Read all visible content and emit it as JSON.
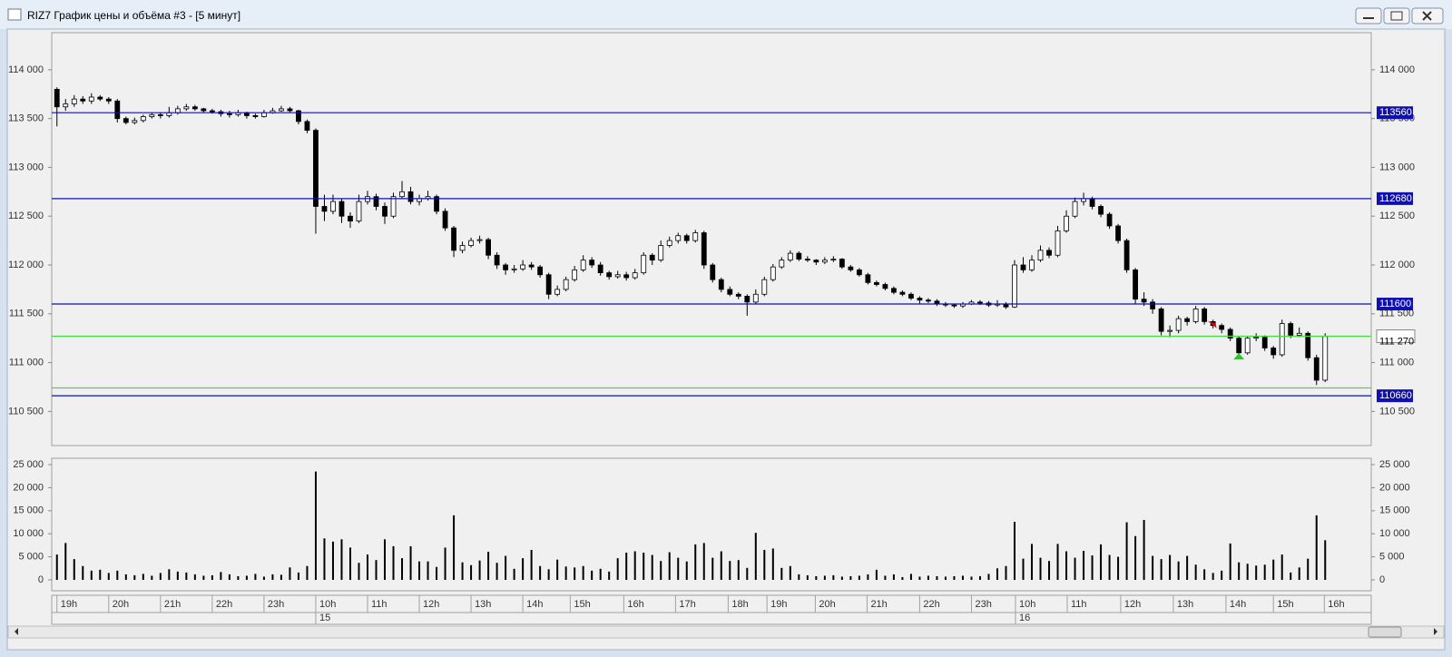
{
  "window": {
    "title": "RIZ7 График цены и объёма #3 - [5 минут]"
  },
  "chart_data": {
    "type": "candlestick",
    "ylim": [
      110150,
      114380
    ],
    "yticks": [
      {
        "value": 110500,
        "label": "110 500"
      },
      {
        "value": 111000,
        "label": "111 000"
      },
      {
        "value": 111500,
        "label": "111 500"
      },
      {
        "value": 112000,
        "label": "112 000"
      },
      {
        "value": 112500,
        "label": "112 500"
      },
      {
        "value": 113000,
        "label": "113 000"
      },
      {
        "value": 113500,
        "label": "113 500"
      },
      {
        "value": 114000,
        "label": "114 000"
      }
    ],
    "volume_ylim": [
      -2360,
      26380
    ],
    "volume_yticks": [
      0,
      {
        "value": 5000,
        "label": "5 000"
      },
      {
        "value": 10000,
        "label": "10 000"
      },
      {
        "value": 15000,
        "label": "15 000"
      },
      {
        "value": 20000,
        "label": "20 000"
      },
      {
        "value": 25000,
        "label": "25 000"
      }
    ],
    "xlim": [
      0,
      148
    ],
    "xticks": [
      {
        "value": 0.5,
        "label": "19h"
      },
      {
        "value": 6.5,
        "label": "20h"
      },
      {
        "value": 12.5,
        "label": "21h"
      },
      {
        "value": 18.5,
        "label": "22h"
      },
      {
        "value": 24.5,
        "label": "23h"
      },
      {
        "value": 30.5,
        "label": "10h"
      },
      {
        "value": 36.5,
        "label": "11h"
      },
      {
        "value": 42.5,
        "label": "12h"
      },
      {
        "value": 48.5,
        "label": "13h"
      },
      {
        "value": 54.5,
        "label": "14h"
      },
      {
        "value": 60,
        "label": "15h"
      },
      {
        "value": 66.2,
        "label": "16h"
      },
      {
        "value": 72.2,
        "label": "17h"
      },
      {
        "value": 78.3,
        "label": "18h"
      },
      {
        "value": 82.8,
        "label": "19h"
      },
      {
        "value": 88.4,
        "label": "20h"
      },
      {
        "value": 94.4,
        "label": "21h"
      },
      {
        "value": 100.5,
        "label": "22h"
      },
      {
        "value": 106.5,
        "label": "23h"
      },
      {
        "value": 111.6,
        "label": "10h"
      },
      {
        "value": 117.6,
        "label": "11h"
      },
      {
        "value": 123.8,
        "label": "12h"
      },
      {
        "value": 129.9,
        "label": "13h"
      },
      {
        "value": 136,
        "label": "14h"
      },
      {
        "value": 141.5,
        "label": "15h"
      },
      {
        "value": 147.4,
        "label": "16h"
      }
    ],
    "date_ticks": [
      {
        "value": 30.5,
        "label": "15"
      },
      {
        "value": 111.6,
        "label": "16"
      }
    ],
    "candles": [
      [
        113800,
        113820,
        113420,
        113620
      ],
      [
        113620,
        113700,
        113580,
        113650
      ],
      [
        113650,
        113740,
        113620,
        113700
      ],
      [
        113700,
        113730,
        113650,
        113680
      ],
      [
        113680,
        113760,
        113650,
        113720
      ],
      [
        113720,
        113740,
        113680,
        113700
      ],
      [
        113700,
        113720,
        113650,
        113680
      ],
      [
        113680,
        113700,
        113460,
        113500
      ],
      [
        113500,
        113520,
        113440,
        113460
      ],
      [
        113460,
        113510,
        113440,
        113480
      ],
      [
        113480,
        113540,
        113460,
        113520
      ],
      [
        113520,
        113560,
        113500,
        113540
      ],
      [
        113540,
        113560,
        113500,
        113530
      ],
      [
        113530,
        113620,
        113510,
        113560
      ],
      [
        113560,
        113630,
        113540,
        113600
      ],
      [
        113600,
        113650,
        113580,
        113620
      ],
      [
        113620,
        113640,
        113580,
        113600
      ],
      [
        113600,
        113610,
        113560,
        113580
      ],
      [
        113580,
        113600,
        113550,
        113570
      ],
      [
        113570,
        113590,
        113520,
        113550
      ],
      [
        113550,
        113580,
        113510,
        113540
      ],
      [
        113540,
        113590,
        113520,
        113560
      ],
      [
        113560,
        113570,
        113500,
        113530
      ],
      [
        113530,
        113550,
        113500,
        113520
      ],
      [
        113520,
        113590,
        113510,
        113560
      ],
      [
        113560,
        113610,
        113550,
        113580
      ],
      [
        113580,
        113630,
        113570,
        113600
      ],
      [
        113600,
        113620,
        113560,
        113580
      ],
      [
        113580,
        113590,
        113440,
        113470
      ],
      [
        113470,
        113490,
        113350,
        113380
      ],
      [
        113380,
        113400,
        112320,
        112600
      ],
      [
        112600,
        112720,
        112450,
        112550
      ],
      [
        112550,
        112720,
        112520,
        112650
      ],
      [
        112650,
        112680,
        112430,
        112500
      ],
      [
        112500,
        112540,
        112380,
        112450
      ],
      [
        112450,
        112720,
        112430,
        112650
      ],
      [
        112650,
        112760,
        112620,
        112700
      ],
      [
        112700,
        112730,
        112560,
        112600
      ],
      [
        112600,
        112640,
        112420,
        112500
      ],
      [
        112500,
        112740,
        112480,
        112700
      ],
      [
        112700,
        112860,
        112680,
        112750
      ],
      [
        112750,
        112800,
        112620,
        112650
      ],
      [
        112650,
        112720,
        112610,
        112680
      ],
      [
        112680,
        112760,
        112660,
        112700
      ],
      [
        112700,
        112720,
        112520,
        112550
      ],
      [
        112550,
        112580,
        112350,
        112380
      ],
      [
        112380,
        112400,
        112080,
        112150
      ],
      [
        112150,
        112240,
        112120,
        112200
      ],
      [
        112200,
        112280,
        112180,
        112250
      ],
      [
        112250,
        112300,
        112220,
        112260
      ],
      [
        112260,
        112280,
        112060,
        112100
      ],
      [
        112100,
        112130,
        111960,
        112000
      ],
      [
        112000,
        112020,
        111900,
        111950
      ],
      [
        111950,
        112000,
        111920,
        111960
      ],
      [
        111960,
        112050,
        111940,
        112000
      ],
      [
        112000,
        112030,
        111950,
        111980
      ],
      [
        111980,
        112000,
        111870,
        111900
      ],
      [
        111900,
        111920,
        111650,
        111700
      ],
      [
        111700,
        111790,
        111680,
        111750
      ],
      [
        111750,
        111880,
        111730,
        111850
      ],
      [
        111850,
        111990,
        111830,
        111950
      ],
      [
        111950,
        112100,
        111930,
        112050
      ],
      [
        112050,
        112080,
        111970,
        112000
      ],
      [
        112000,
        112030,
        111890,
        111920
      ],
      [
        111920,
        111940,
        111850,
        111880
      ],
      [
        111880,
        111940,
        111860,
        111900
      ],
      [
        111900,
        111930,
        111840,
        111870
      ],
      [
        111870,
        111960,
        111850,
        111920
      ],
      [
        111920,
        112130,
        111900,
        112100
      ],
      [
        112100,
        112120,
        112000,
        112050
      ],
      [
        112050,
        112250,
        112030,
        112200
      ],
      [
        112200,
        112290,
        112180,
        112250
      ],
      [
        112250,
        112330,
        112220,
        112300
      ],
      [
        112300,
        112320,
        112220,
        112250
      ],
      [
        112250,
        112360,
        112230,
        112330
      ],
      [
        112330,
        112350,
        111960,
        112000
      ],
      [
        112000,
        112020,
        111820,
        111850
      ],
      [
        111850,
        111870,
        111720,
        111750
      ],
      [
        111750,
        111780,
        111680,
        111700
      ],
      [
        111700,
        111720,
        111650,
        111680
      ],
      [
        111680,
        111700,
        111480,
        111620
      ],
      [
        111620,
        111750,
        111600,
        111700
      ],
      [
        111700,
        111880,
        111680,
        111850
      ],
      [
        111850,
        112010,
        111830,
        111980
      ],
      [
        111980,
        112080,
        111960,
        112050
      ],
      [
        112050,
        112150,
        112030,
        112120
      ],
      [
        112120,
        112140,
        112040,
        112060
      ],
      [
        112060,
        112090,
        112030,
        112050
      ],
      [
        112050,
        112060,
        112000,
        112030
      ],
      [
        112030,
        112080,
        112010,
        112050
      ],
      [
        112050,
        112090,
        112030,
        112060
      ],
      [
        112060,
        112070,
        111960,
        111980
      ],
      [
        111980,
        112000,
        111930,
        111950
      ],
      [
        111950,
        111970,
        111880,
        111900
      ],
      [
        111900,
        111920,
        111800,
        111820
      ],
      [
        111820,
        111840,
        111780,
        111800
      ],
      [
        111800,
        111820,
        111740,
        111760
      ],
      [
        111760,
        111780,
        111700,
        111720
      ],
      [
        111720,
        111740,
        111680,
        111700
      ],
      [
        111700,
        111720,
        111640,
        111660
      ],
      [
        111660,
        111680,
        111600,
        111640
      ],
      [
        111640,
        111660,
        111610,
        111630
      ],
      [
        111630,
        111650,
        111580,
        111600
      ],
      [
        111600,
        111620,
        111570,
        111590
      ],
      [
        111590,
        111600,
        111560,
        111580
      ],
      [
        111580,
        111620,
        111560,
        111600
      ],
      [
        111600,
        111640,
        111590,
        111620
      ],
      [
        111620,
        111640,
        111590,
        111610
      ],
      [
        111610,
        111630,
        111570,
        111590
      ],
      [
        111590,
        111640,
        111570,
        111600
      ],
      [
        111600,
        111620,
        111550,
        111570
      ],
      [
        111570,
        112050,
        111560,
        112000
      ],
      [
        112000,
        112080,
        111920,
        111950
      ],
      [
        111950,
        112100,
        111930,
        112050
      ],
      [
        112050,
        112200,
        112030,
        112150
      ],
      [
        112150,
        112180,
        112070,
        112100
      ],
      [
        112100,
        112400,
        112080,
        112350
      ],
      [
        112350,
        112560,
        112330,
        112500
      ],
      [
        112500,
        112690,
        112480,
        112650
      ],
      [
        112650,
        112740,
        112610,
        112680
      ],
      [
        112680,
        112700,
        112570,
        112600
      ],
      [
        112600,
        112620,
        112490,
        112520
      ],
      [
        112520,
        112540,
        112370,
        112400
      ],
      [
        112400,
        112420,
        112220,
        112250
      ],
      [
        112250,
        112270,
        111920,
        111950
      ],
      [
        111950,
        111970,
        111600,
        111650
      ],
      [
        111650,
        111720,
        111580,
        111620
      ],
      [
        111620,
        111650,
        111500,
        111550
      ],
      [
        111550,
        111570,
        111280,
        111320
      ],
      [
        111320,
        111380,
        111260,
        111330
      ],
      [
        111330,
        111480,
        111300,
        111450
      ],
      [
        111450,
        111470,
        111380,
        111420
      ],
      [
        111420,
        111580,
        111400,
        111550
      ],
      [
        111550,
        111570,
        111390,
        111420
      ],
      [
        111420,
        111440,
        111350,
        111380
      ],
      [
        111380,
        111400,
        111300,
        111340
      ],
      [
        111340,
        111360,
        111220,
        111250
      ],
      [
        111250,
        111270,
        111060,
        111100
      ],
      [
        111100,
        111270,
        111080,
        111250
      ],
      [
        111250,
        111300,
        111220,
        111260
      ],
      [
        111260,
        111280,
        111120,
        111150
      ],
      [
        111150,
        111170,
        111040,
        111080
      ],
      [
        111080,
        111440,
        111060,
        111400
      ],
      [
        111400,
        111420,
        111250,
        111280
      ],
      [
        111280,
        111360,
        111260,
        111300
      ],
      [
        111300,
        111320,
        111020,
        111050
      ],
      [
        111050,
        111080,
        110770,
        110820
      ],
      [
        110820,
        111300,
        110800,
        111270
      ]
    ],
    "volumes": [
      5500,
      8000,
      4500,
      3000,
      2000,
      2200,
      1500,
      2000,
      1200,
      1000,
      1300,
      900,
      1500,
      2300,
      1800,
      1600,
      1200,
      900,
      1000,
      1700,
      1200,
      800,
      900,
      1300,
      700,
      1200,
      1100,
      2700,
      1600,
      3000,
      23500,
      9000,
      8300,
      8800,
      7000,
      3700,
      5500,
      4300,
      8800,
      7300,
      4700,
      7300,
      4000,
      4000,
      2800,
      7000,
      14000,
      3800,
      3200,
      4200,
      6100,
      3700,
      5200,
      2400,
      4700,
      6500,
      3000,
      2300,
      4400,
      2900,
      2700,
      3000,
      2000,
      2400,
      1800,
      4700,
      5900,
      6200,
      5900,
      5400,
      4100,
      6000,
      4800,
      4000,
      7700,
      8000,
      4800,
      6200,
      4100,
      4300,
      2600,
      10200,
      6500,
      6800,
      2600,
      3000,
      1200,
      1000,
      800,
      900,
      1000,
      700,
      800,
      900,
      1200,
      2200,
      900,
      1200,
      600,
      1300,
      700,
      900,
      800,
      700,
      800,
      900,
      700,
      800,
      1300,
      2500,
      3000,
      12600,
      4600,
      7800,
      4800,
      4100,
      7800,
      6200,
      4800,
      6300,
      5300,
      7700,
      5400,
      5000,
      12500,
      9500,
      13000,
      5200,
      4500,
      5400,
      4000,
      5200,
      3300,
      2300,
      1500,
      2000,
      7900,
      3800,
      3500,
      3100,
      3300,
      4400,
      5500,
      1600,
      2700,
      4600,
      14000,
      8600
    ],
    "levels": [
      {
        "value": 113560,
        "color": "#1010b0",
        "label_box": "filled"
      },
      {
        "value": 112680,
        "color": "#1010b0",
        "label_box": "filled"
      },
      {
        "value": 111600,
        "color": "#1010b0",
        "label_box": "filled"
      },
      {
        "value": 110660,
        "color": "#1010b0",
        "label_box": "filled"
      },
      {
        "value": 111270,
        "label": "111 270",
        "color": "#44dd44",
        "label_box": "plain"
      },
      {
        "value": 110740,
        "color": "#44dd44",
        "label_box": "none"
      }
    ],
    "markers": [
      {
        "x": 134,
        "price": 111390,
        "color": "#e00000",
        "direction": "down"
      },
      {
        "x": 137,
        "price": 111060,
        "color": "#22cc22",
        "direction": "up"
      }
    ]
  }
}
